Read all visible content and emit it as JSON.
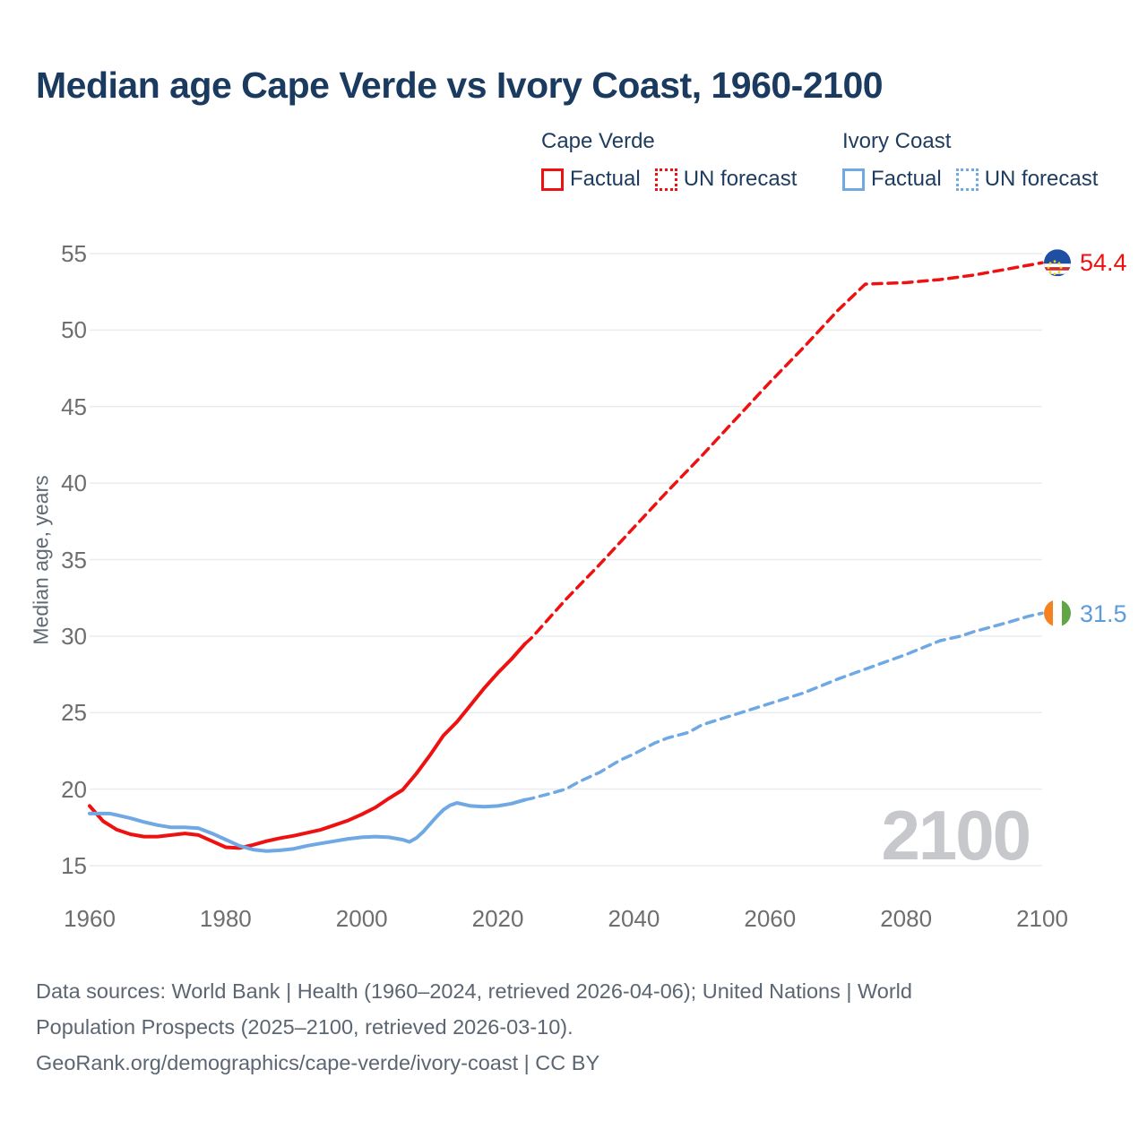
{
  "title": "Median age Cape Verde vs Ivory Coast, 1960-2100",
  "legend": {
    "groups": [
      {
        "name": "Cape Verde",
        "color": "#ee1111",
        "items": [
          {
            "label": "Factual",
            "style": "solid"
          },
          {
            "label": "UN forecast",
            "style": "dotted"
          }
        ]
      },
      {
        "name": "Ivory Coast",
        "color": "#6fa8e2",
        "items": [
          {
            "label": "Factual",
            "style": "solid"
          },
          {
            "label": "UN forecast",
            "style": "dotted"
          }
        ]
      }
    ]
  },
  "y_axis": {
    "title": "Median age, years",
    "ticks": [
      55,
      50,
      45,
      40,
      35,
      30,
      25,
      20,
      15
    ]
  },
  "x_axis": {
    "ticks": [
      1960,
      1980,
      2000,
      2020,
      2040,
      2060,
      2080,
      2100
    ]
  },
  "watermark": "2100",
  "end_labels": {
    "cape_verde": "54.4",
    "ivory_coast": "31.5"
  },
  "footer": {
    "line1": "Data sources: World Bank | Health (1960–2024, retrieved 2026-04-06); United Nations | World",
    "line2": "Population Prospects (2025–2100, retrieved 2026-03-10).",
    "line3": "GeoRank.org/demographics/cape-verde/ivory-coast | CC BY"
  },
  "chart_data": {
    "type": "line",
    "title": "Median age Cape Verde vs Ivory Coast, 1960-2100",
    "xlabel": "",
    "ylabel": "Median age, years",
    "xlim": [
      1960,
      2100
    ],
    "ylim": [
      15,
      55
    ],
    "grid": "horizontal",
    "legend_position": "top-right",
    "colors": {
      "cape_verde": "#ee1111",
      "ivory_coast": "#6fa8e2"
    },
    "series": [
      {
        "name": "Cape Verde — Factual",
        "color": "#ee1111",
        "dash": "solid",
        "points": [
          [
            1960,
            18.9
          ],
          [
            1962,
            17.9
          ],
          [
            1964,
            17.35
          ],
          [
            1966,
            17.05
          ],
          [
            1968,
            16.9
          ],
          [
            1970,
            16.9
          ],
          [
            1972,
            17.0
          ],
          [
            1974,
            17.1
          ],
          [
            1976,
            17.0
          ],
          [
            1978,
            16.6
          ],
          [
            1980,
            16.2
          ],
          [
            1982,
            16.15
          ],
          [
            1984,
            16.35
          ],
          [
            1986,
            16.6
          ],
          [
            1988,
            16.8
          ],
          [
            1990,
            16.95
          ],
          [
            1992,
            17.15
          ],
          [
            1994,
            17.35
          ],
          [
            1996,
            17.65
          ],
          [
            1998,
            17.95
          ],
          [
            2000,
            18.35
          ],
          [
            2002,
            18.8
          ],
          [
            2004,
            19.4
          ],
          [
            2006,
            19.95
          ],
          [
            2008,
            21.0
          ],
          [
            2010,
            22.2
          ],
          [
            2012,
            23.5
          ],
          [
            2014,
            24.4
          ],
          [
            2016,
            25.5
          ],
          [
            2018,
            26.6
          ],
          [
            2020,
            27.6
          ],
          [
            2022,
            28.5
          ],
          [
            2024,
            29.5
          ]
        ]
      },
      {
        "name": "Cape Verde — UN forecast",
        "color": "#ee1111",
        "dash": "dashed",
        "end_value": 54.4,
        "marker": "cape-verde-flag",
        "points": [
          [
            2024,
            29.5
          ],
          [
            2025,
            29.9
          ],
          [
            2030,
            32.4
          ],
          [
            2035,
            34.7
          ],
          [
            2040,
            37.1
          ],
          [
            2045,
            39.5
          ],
          [
            2050,
            41.8
          ],
          [
            2055,
            44.2
          ],
          [
            2060,
            46.6
          ],
          [
            2065,
            48.9
          ],
          [
            2070,
            51.3
          ],
          [
            2074,
            53.0
          ],
          [
            2080,
            53.1
          ],
          [
            2085,
            53.3
          ],
          [
            2090,
            53.6
          ],
          [
            2095,
            54.0
          ],
          [
            2100,
            54.4
          ]
        ]
      },
      {
        "name": "Ivory Coast — Factual",
        "color": "#6fa8e2",
        "dash": "solid",
        "points": [
          [
            1960,
            18.4
          ],
          [
            1963,
            18.4
          ],
          [
            1966,
            18.1
          ],
          [
            1968,
            17.85
          ],
          [
            1970,
            17.65
          ],
          [
            1972,
            17.5
          ],
          [
            1974,
            17.5
          ],
          [
            1976,
            17.45
          ],
          [
            1978,
            17.1
          ],
          [
            1980,
            16.7
          ],
          [
            1982,
            16.3
          ],
          [
            1984,
            16.05
          ],
          [
            1986,
            15.95
          ],
          [
            1988,
            16.0
          ],
          [
            1990,
            16.1
          ],
          [
            1992,
            16.3
          ],
          [
            1994,
            16.45
          ],
          [
            1996,
            16.6
          ],
          [
            1998,
            16.75
          ],
          [
            2000,
            16.85
          ],
          [
            2002,
            16.9
          ],
          [
            2004,
            16.85
          ],
          [
            2006,
            16.7
          ],
          [
            2007,
            16.55
          ],
          [
            2008,
            16.8
          ],
          [
            2009,
            17.2
          ],
          [
            2010,
            17.7
          ],
          [
            2011,
            18.2
          ],
          [
            2012,
            18.65
          ],
          [
            2013,
            18.95
          ],
          [
            2014,
            19.1
          ],
          [
            2015,
            19.0
          ],
          [
            2016,
            18.9
          ],
          [
            2018,
            18.85
          ],
          [
            2020,
            18.9
          ],
          [
            2022,
            19.05
          ],
          [
            2024,
            19.3
          ]
        ]
      },
      {
        "name": "Ivory Coast — UN forecast",
        "color": "#6fa8e2",
        "dash": "dashed",
        "end_value": 31.5,
        "marker": "ivory-coast-flag",
        "points": [
          [
            2024,
            19.3
          ],
          [
            2025,
            19.4
          ],
          [
            2028,
            19.75
          ],
          [
            2030,
            20.0
          ],
          [
            2032,
            20.5
          ],
          [
            2035,
            21.1
          ],
          [
            2038,
            21.9
          ],
          [
            2040,
            22.3
          ],
          [
            2043,
            23.0
          ],
          [
            2045,
            23.35
          ],
          [
            2048,
            23.7
          ],
          [
            2050,
            24.2
          ],
          [
            2055,
            24.9
          ],
          [
            2060,
            25.6
          ],
          [
            2065,
            26.3
          ],
          [
            2070,
            27.2
          ],
          [
            2075,
            28.0
          ],
          [
            2080,
            28.8
          ],
          [
            2085,
            29.7
          ],
          [
            2088,
            30.0
          ],
          [
            2090,
            30.3
          ],
          [
            2095,
            30.9
          ],
          [
            2098,
            31.3
          ],
          [
            2100,
            31.5
          ]
        ]
      }
    ]
  }
}
